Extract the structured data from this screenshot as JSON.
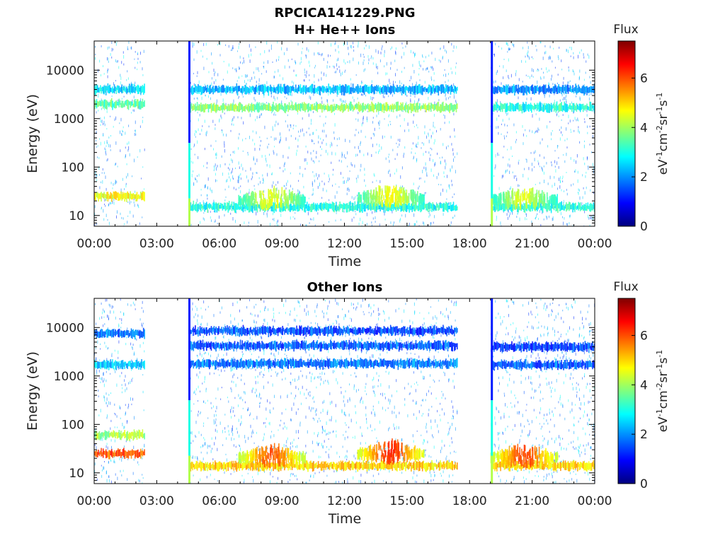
{
  "figure": {
    "title": "RPCICA141229.PNG"
  },
  "colormap": [
    "#00007f",
    "#0000ff",
    "#007fff",
    "#00ffff",
    "#7fff7f",
    "#ffff00",
    "#ff7f00",
    "#ff0000",
    "#7f0000"
  ],
  "chart_data": [
    {
      "type": "heatmap",
      "title": "H+ He++ Ions",
      "xlabel": "Time",
      "ylabel": "Energy (eV)",
      "xticks": [
        "00:00",
        "03:00",
        "06:00",
        "09:00",
        "12:00",
        "15:00",
        "18:00",
        "21:00",
        "00:00"
      ],
      "xlim_hours": [
        0,
        24
      ],
      "yscale": "log",
      "ylim": [
        6,
        40000
      ],
      "yticks": [
        10,
        100,
        1000,
        10000
      ],
      "ytick_labels": [
        "10",
        "100",
        "1000",
        "10000"
      ],
      "colorbar": {
        "title": "Flux",
        "unit_label": "eV-1cm-2sr-1s-1",
        "range": [
          0,
          7.5
        ],
        "ticks": [
          "0",
          "2",
          "4",
          "6"
        ]
      },
      "data_gaps_hours": [
        [
          2.4,
          4.55
        ],
        [
          17.4,
          19.0
        ]
      ],
      "spike_hours": [
        4.55,
        19.05
      ],
      "bands": [
        {
          "energy_eV": 25,
          "flux": 4.6,
          "hours": [
            0,
            2.4
          ]
        },
        {
          "energy_eV": 2000,
          "flux": 3.4,
          "hours": [
            0,
            2.4
          ]
        },
        {
          "energy_eV": 4000,
          "flux": 2.6,
          "hours": [
            0,
            2.4
          ]
        },
        {
          "energy_eV": 1700,
          "flux": 3.8,
          "hours": [
            4.6,
            17.4
          ]
        },
        {
          "energy_eV": 4000,
          "flux": 2.3,
          "hours": [
            4.6,
            17.4
          ]
        },
        {
          "energy_eV": 1700,
          "flux": 3.0,
          "hours": [
            19.1,
            24
          ]
        },
        {
          "energy_eV": 4000,
          "flux": 2.0,
          "hours": [
            19.1,
            24
          ]
        },
        {
          "energy_eV": 15,
          "flux": 3.0,
          "hours": [
            4.6,
            17.4
          ]
        },
        {
          "energy_eV": 15,
          "flux": 3.0,
          "hours": [
            19.1,
            24
          ]
        }
      ],
      "peaks": [
        {
          "hour": 8.5,
          "energy_eV": 20,
          "flux": 4.5
        },
        {
          "hour": 14.2,
          "energy_eV": 22,
          "flux": 4.6
        },
        {
          "hour": 20.6,
          "energy_eV": 20,
          "flux": 4.4
        }
      ]
    },
    {
      "type": "heatmap",
      "title": "Other Ions",
      "xlabel": "Time",
      "ylabel": "Energy (eV)",
      "xticks": [
        "00:00",
        "03:00",
        "06:00",
        "09:00",
        "12:00",
        "15:00",
        "18:00",
        "21:00",
        "00:00"
      ],
      "xlim_hours": [
        0,
        24
      ],
      "yscale": "log",
      "ylim": [
        6,
        40000
      ],
      "yticks": [
        10,
        100,
        1000,
        10000
      ],
      "ytick_labels": [
        "10",
        "100",
        "1000",
        "10000"
      ],
      "colorbar": {
        "title": "Flux",
        "unit_label": "eV-1cm-2sr-1s-1",
        "range": [
          0,
          7.5
        ],
        "ticks": [
          "0",
          "2",
          "4",
          "6"
        ]
      },
      "data_gaps_hours": [
        [
          2.4,
          4.55
        ],
        [
          17.4,
          19.0
        ]
      ],
      "spike_hours": [
        4.55,
        19.05
      ],
      "bands": [
        {
          "energy_eV": 25,
          "flux": 6.0,
          "hours": [
            0,
            2.4
          ]
        },
        {
          "energy_eV": 60,
          "flux": 4.0,
          "hours": [
            0,
            2.4
          ]
        },
        {
          "energy_eV": 1700,
          "flux": 2.4,
          "hours": [
            0,
            2.4
          ]
        },
        {
          "energy_eV": 7500,
          "flux": 1.8,
          "hours": [
            0,
            2.4
          ]
        },
        {
          "energy_eV": 1800,
          "flux": 1.8,
          "hours": [
            4.6,
            17.4
          ]
        },
        {
          "energy_eV": 4200,
          "flux": 1.6,
          "hours": [
            4.6,
            17.4
          ]
        },
        {
          "energy_eV": 8500,
          "flux": 1.5,
          "hours": [
            4.6,
            17.4
          ]
        },
        {
          "energy_eV": 1700,
          "flux": 1.6,
          "hours": [
            19.1,
            24
          ]
        },
        {
          "energy_eV": 4000,
          "flux": 1.4,
          "hours": [
            19.1,
            24
          ]
        },
        {
          "energy_eV": 14,
          "flux": 5.0,
          "hours": [
            4.6,
            17.4
          ]
        },
        {
          "energy_eV": 14,
          "flux": 5.0,
          "hours": [
            19.1,
            24
          ]
        }
      ],
      "peaks": [
        {
          "hour": 8.5,
          "energy_eV": 20,
          "flux": 5.9
        },
        {
          "hour": 14.2,
          "energy_eV": 24,
          "flux": 6.2
        },
        {
          "hour": 20.6,
          "energy_eV": 20,
          "flux": 6.0
        }
      ]
    }
  ]
}
